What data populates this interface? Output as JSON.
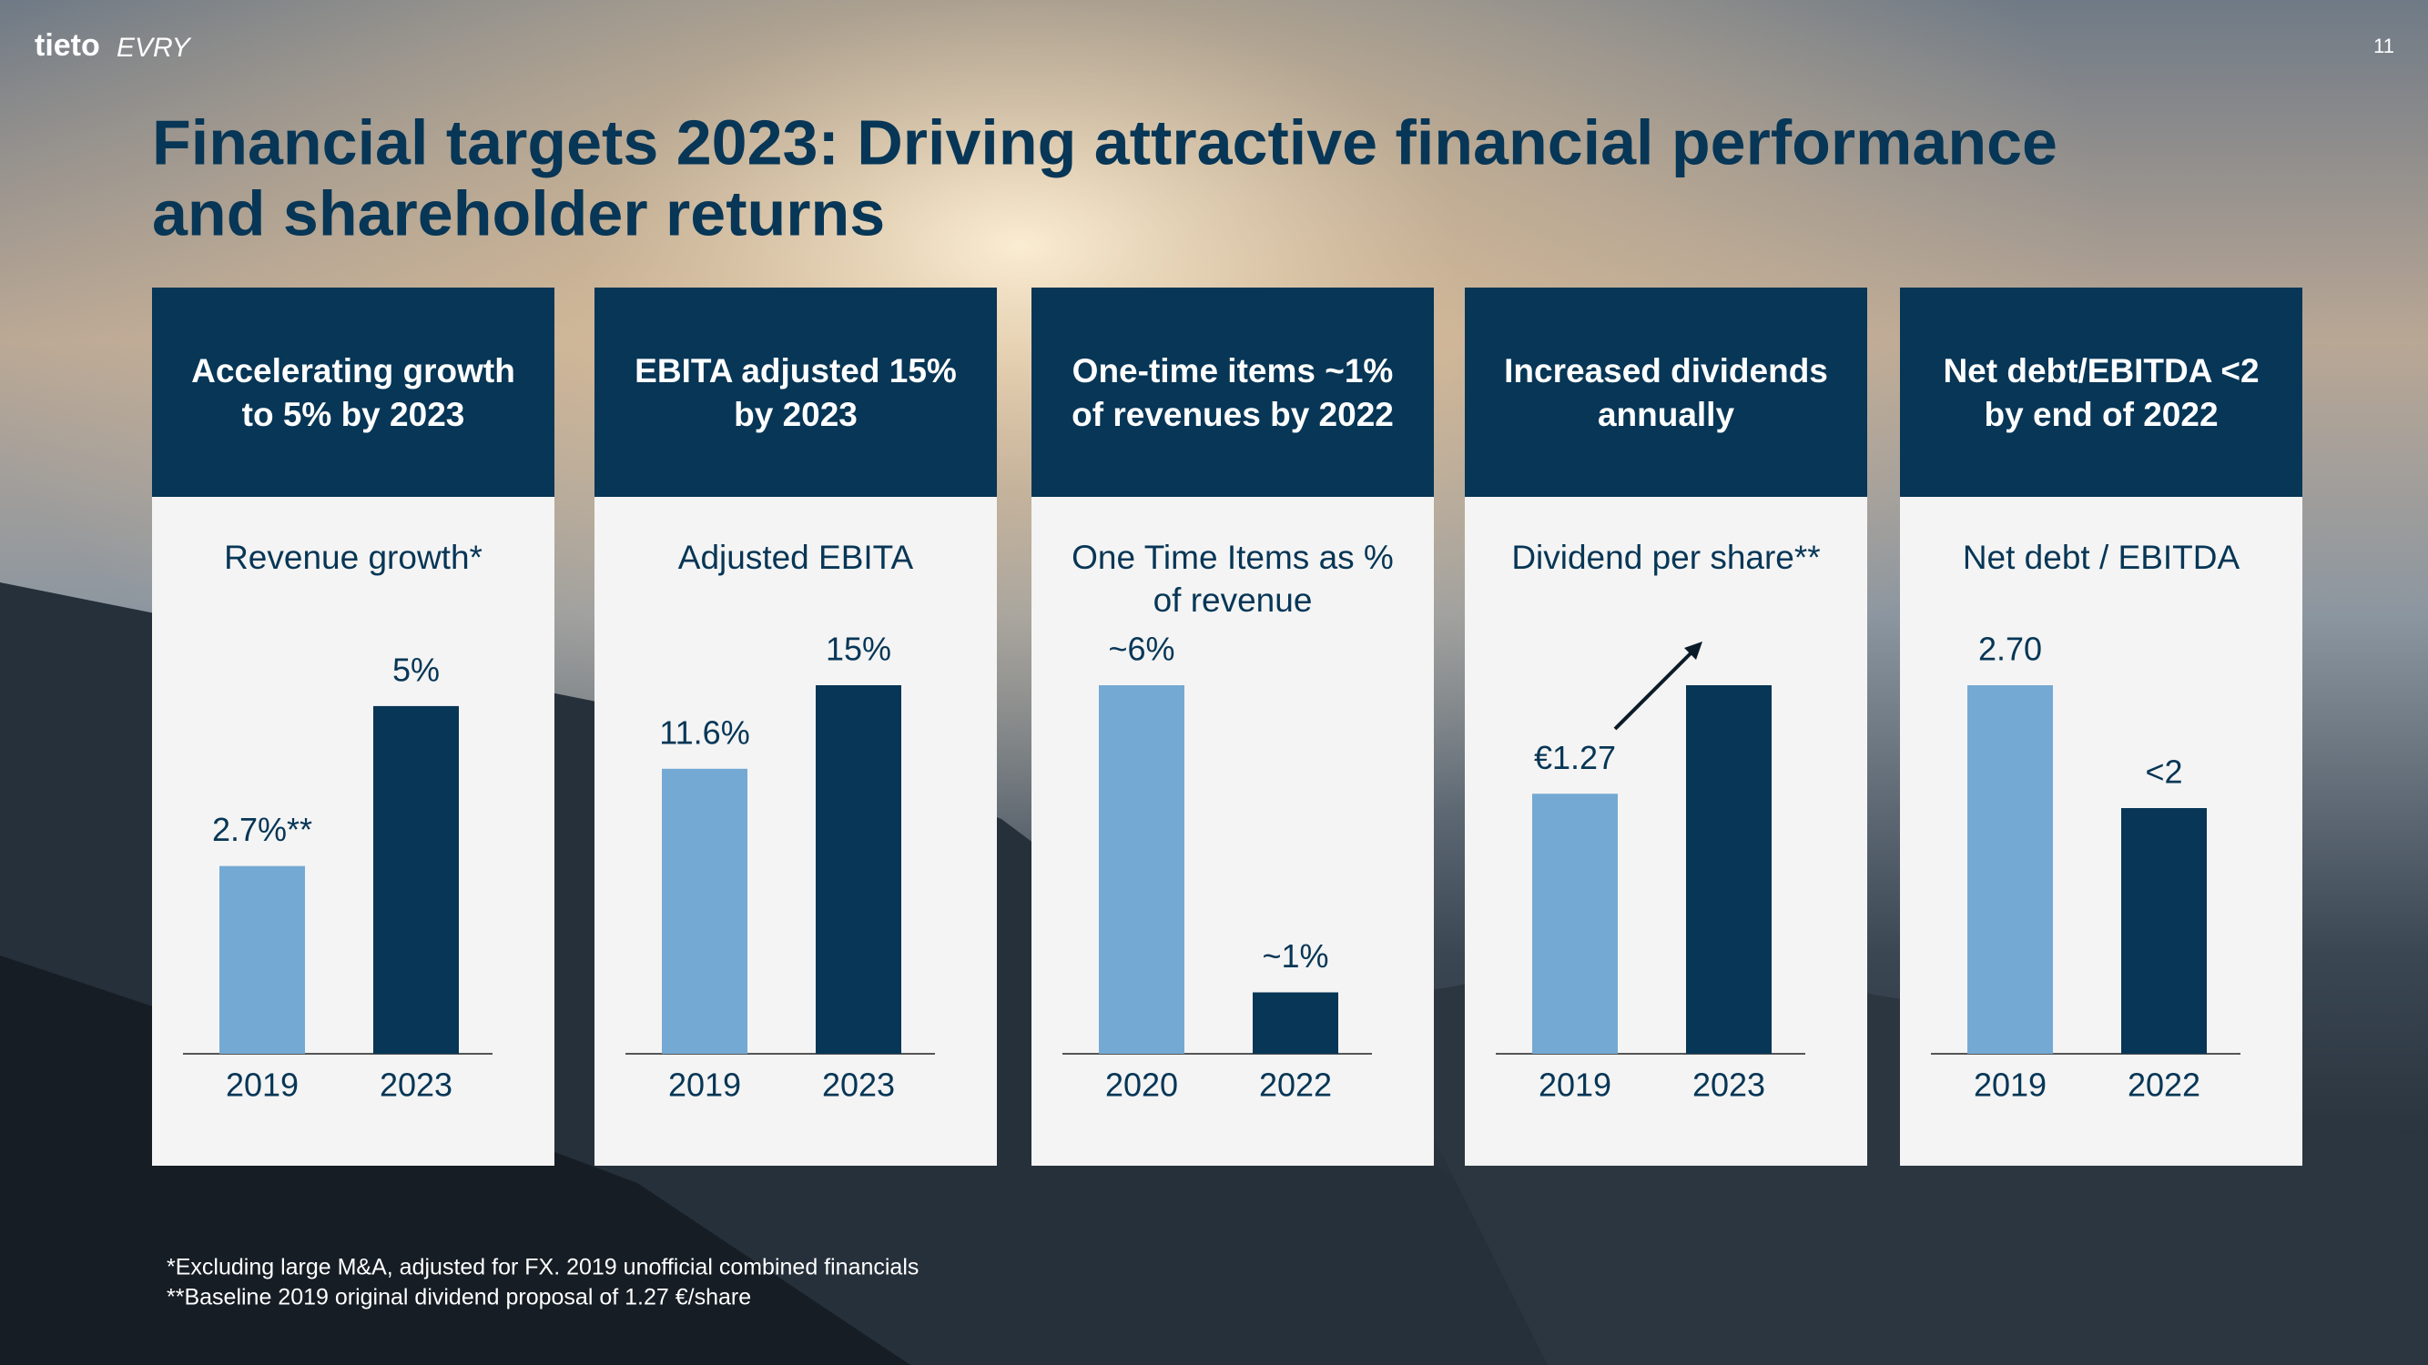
{
  "header": {
    "logo": [
      "tieto",
      "EVRY"
    ],
    "page_number": "11",
    "title": [
      "Financial targets 2023: Driving attractive financial performance",
      "and shareholder returns"
    ]
  },
  "chart_data": [
    {
      "type": "bar",
      "heading": [
        "Accelerating growth",
        "to 5% by 2023"
      ],
      "title": [
        "Revenue growth*"
      ],
      "categories": [
        "2019",
        "2023"
      ],
      "values": [
        2.7,
        5
      ],
      "value_labels": [
        "2.7%**",
        "5%"
      ],
      "colors": [
        "#74a9d4",
        "#073656"
      ],
      "ylim": [
        0,
        5.3
      ]
    },
    {
      "type": "bar",
      "heading": [
        "EBITA adjusted 15%",
        "by 2023"
      ],
      "title": [
        "Adjusted EBITA"
      ],
      "categories": [
        "2019",
        "2023"
      ],
      "values": [
        11.6,
        15
      ],
      "value_labels": [
        "11.6%",
        "15%"
      ],
      "colors": [
        "#74a9d4",
        "#073656"
      ],
      "ylim": [
        0,
        15
      ]
    },
    {
      "type": "bar",
      "heading": [
        "One-time items ~1%",
        "of revenues by 2022"
      ],
      "title": [
        "One Time Items as %",
        "of revenue"
      ],
      "categories": [
        "2020",
        "2022"
      ],
      "values": [
        6,
        1
      ],
      "value_labels": [
        "~6%",
        "~1%"
      ],
      "colors": [
        "#74a9d4",
        "#073656"
      ],
      "ylim": [
        0,
        6
      ]
    },
    {
      "type": "bar",
      "heading": [
        "Increased dividends",
        "annually"
      ],
      "title": [
        "Dividend per share**"
      ],
      "categories": [
        "2019",
        "2023"
      ],
      "values": [
        1.27,
        1.8
      ],
      "value_labels": [
        "€1.27",
        null
      ],
      "colors": [
        "#74a9d4",
        "#073656"
      ],
      "ylim": [
        0,
        1.8
      ]
    },
    {
      "type": "bar",
      "heading": [
        "Net debt/EBITDA <2",
        "by end of 2022"
      ],
      "title": [
        "Net debt / EBITDA"
      ],
      "categories": [
        "2019",
        "2022"
      ],
      "values": [
        2.7,
        1.8
      ],
      "value_labels": [
        "2.70",
        "<2"
      ],
      "colors": [
        "#74a9d4",
        "#073656"
      ],
      "ylim": [
        0,
        2.7
      ]
    }
  ],
  "footnotes": [
    "*Excluding large M&A, adjusted for FX. 2019 unofficial combined financials",
    "**Baseline 2019 original dividend proposal of 1.27 €/share"
  ]
}
